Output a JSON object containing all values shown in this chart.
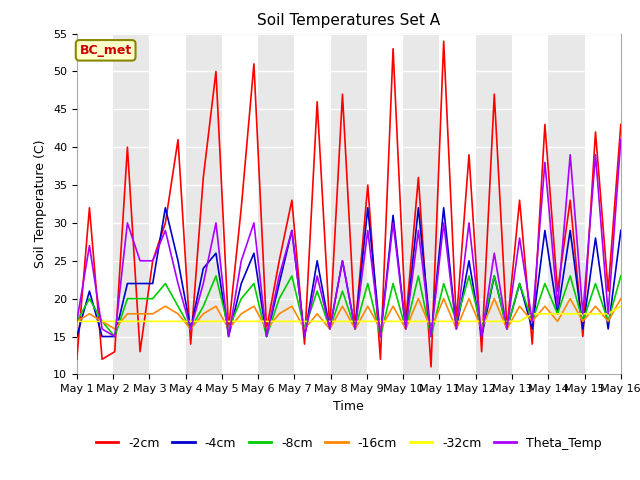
{
  "title": "Soil Temperatures Set A",
  "xlabel": "Time",
  "ylabel": "Soil Temperature (C)",
  "ylim": [
    10,
    55
  ],
  "annotation": "BC_met",
  "x_labels": [
    "May 1",
    "May 2",
    "May 3",
    "May 4",
    "May 5",
    "May 6",
    "May 7",
    "May 8",
    "May 9",
    "May 10",
    "May 11",
    "May 12",
    "May 13",
    "May 14",
    "May 15",
    "May 16"
  ],
  "bg_color": "#e8e8e8",
  "white_band_color": "#f5f5f5",
  "series_names": [
    "-2cm",
    "-4cm",
    "-8cm",
    "-16cm",
    "-32cm",
    "Theta_Temp"
  ],
  "series": {
    "-2cm": {
      "color": "#ff0000",
      "values": [
        12,
        32,
        12,
        13,
        40,
        13,
        25,
        30,
        41,
        14,
        36,
        50,
        16,
        32,
        51,
        16,
        25,
        33,
        14,
        46,
        16,
        47,
        16,
        35,
        12,
        53,
        17,
        36,
        11,
        54,
        17,
        39,
        13,
        47,
        16,
        33,
        14,
        43,
        21,
        33,
        15,
        42,
        21,
        43
      ]
    },
    "-4cm": {
      "color": "#0000cc",
      "values": [
        15,
        21,
        15,
        15,
        22,
        22,
        22,
        32,
        25,
        16,
        24,
        26,
        15,
        22,
        26,
        15,
        22,
        29,
        15,
        25,
        16,
        25,
        16,
        32,
        15,
        31,
        16,
        32,
        15,
        32,
        16,
        25,
        15,
        23,
        16,
        22,
        16,
        29,
        18,
        29,
        16,
        28,
        16,
        29
      ]
    },
    "-8cm": {
      "color": "#00cc00",
      "values": [
        17,
        20,
        17,
        15,
        20,
        20,
        20,
        22,
        19,
        16,
        19,
        23,
        16,
        20,
        22,
        15,
        20,
        23,
        16,
        21,
        16,
        21,
        16,
        22,
        15,
        22,
        16,
        23,
        15,
        22,
        17,
        23,
        16,
        23,
        16,
        22,
        17,
        22,
        18,
        23,
        17,
        22,
        17,
        23
      ]
    },
    "-16cm": {
      "color": "#ff8800",
      "values": [
        17,
        18,
        17,
        16,
        18,
        18,
        18,
        19,
        18,
        16,
        18,
        19,
        16,
        18,
        19,
        16,
        18,
        19,
        16,
        18,
        16,
        19,
        16,
        19,
        16,
        19,
        16,
        20,
        16,
        20,
        16,
        20,
        16,
        20,
        16,
        19,
        17,
        19,
        17,
        20,
        17,
        19,
        17,
        20
      ]
    },
    "-32cm": {
      "color": "#ffff00",
      "values": [
        17,
        17,
        17,
        17,
        17,
        17,
        17,
        17,
        17,
        17,
        17,
        17,
        17,
        17,
        17,
        17,
        17,
        17,
        17,
        17,
        17,
        17,
        17,
        17,
        17,
        17,
        17,
        17,
        17,
        17,
        17,
        17,
        17,
        17,
        17,
        17,
        18,
        18,
        18,
        18,
        18,
        18,
        18,
        19
      ]
    },
    "Theta_Temp": {
      "color": "#aa00ff",
      "values": [
        17,
        27,
        16,
        15,
        30,
        25,
        25,
        29,
        22,
        16,
        22,
        30,
        15,
        25,
        30,
        15,
        23,
        29,
        15,
        23,
        16,
        25,
        16,
        29,
        15,
        30,
        16,
        29,
        15,
        30,
        16,
        30,
        15,
        26,
        16,
        28,
        17,
        38,
        19,
        39,
        18,
        39,
        18,
        41
      ]
    }
  }
}
